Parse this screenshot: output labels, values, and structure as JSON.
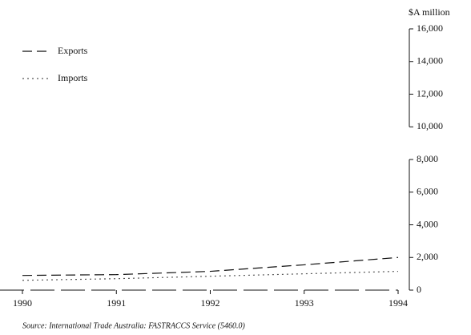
{
  "chart_data": {
    "type": "line",
    "y_axis_label": "$A million",
    "source": "Source: International Trade Australia: FASTRACCS Service (5460.0)",
    "x": [
      1990,
      1991,
      1992,
      1993,
      1994
    ],
    "series": [
      {
        "name": "Exports",
        "color": "#111111",
        "dash": "12 6",
        "values": [
          900,
          950,
          1150,
          1550,
          2000
        ]
      },
      {
        "name": "Imports",
        "color": "#555555",
        "dash": "2 4",
        "values": [
          600,
          700,
          850,
          1000,
          1150
        ]
      }
    ],
    "xlim": [
      1990,
      1994
    ],
    "xticks": [
      1990,
      1991,
      1992,
      1993,
      1994
    ],
    "ylim": [
      0,
      16000
    ],
    "yticks": [
      0,
      {
        "value": 2000,
        "label": "2,000"
      },
      {
        "value": 4000,
        "label": "4,000"
      },
      {
        "value": 6000,
        "label": "6,000"
      },
      {
        "value": 8000,
        "label": "8,000"
      },
      {
        "value": 10000,
        "label": "10,000"
      },
      {
        "value": 12000,
        "label": "12,000"
      },
      {
        "value": 14000,
        "label": "14,000"
      },
      {
        "value": 16000,
        "label": "16,000"
      }
    ],
    "legend": "top-left"
  }
}
